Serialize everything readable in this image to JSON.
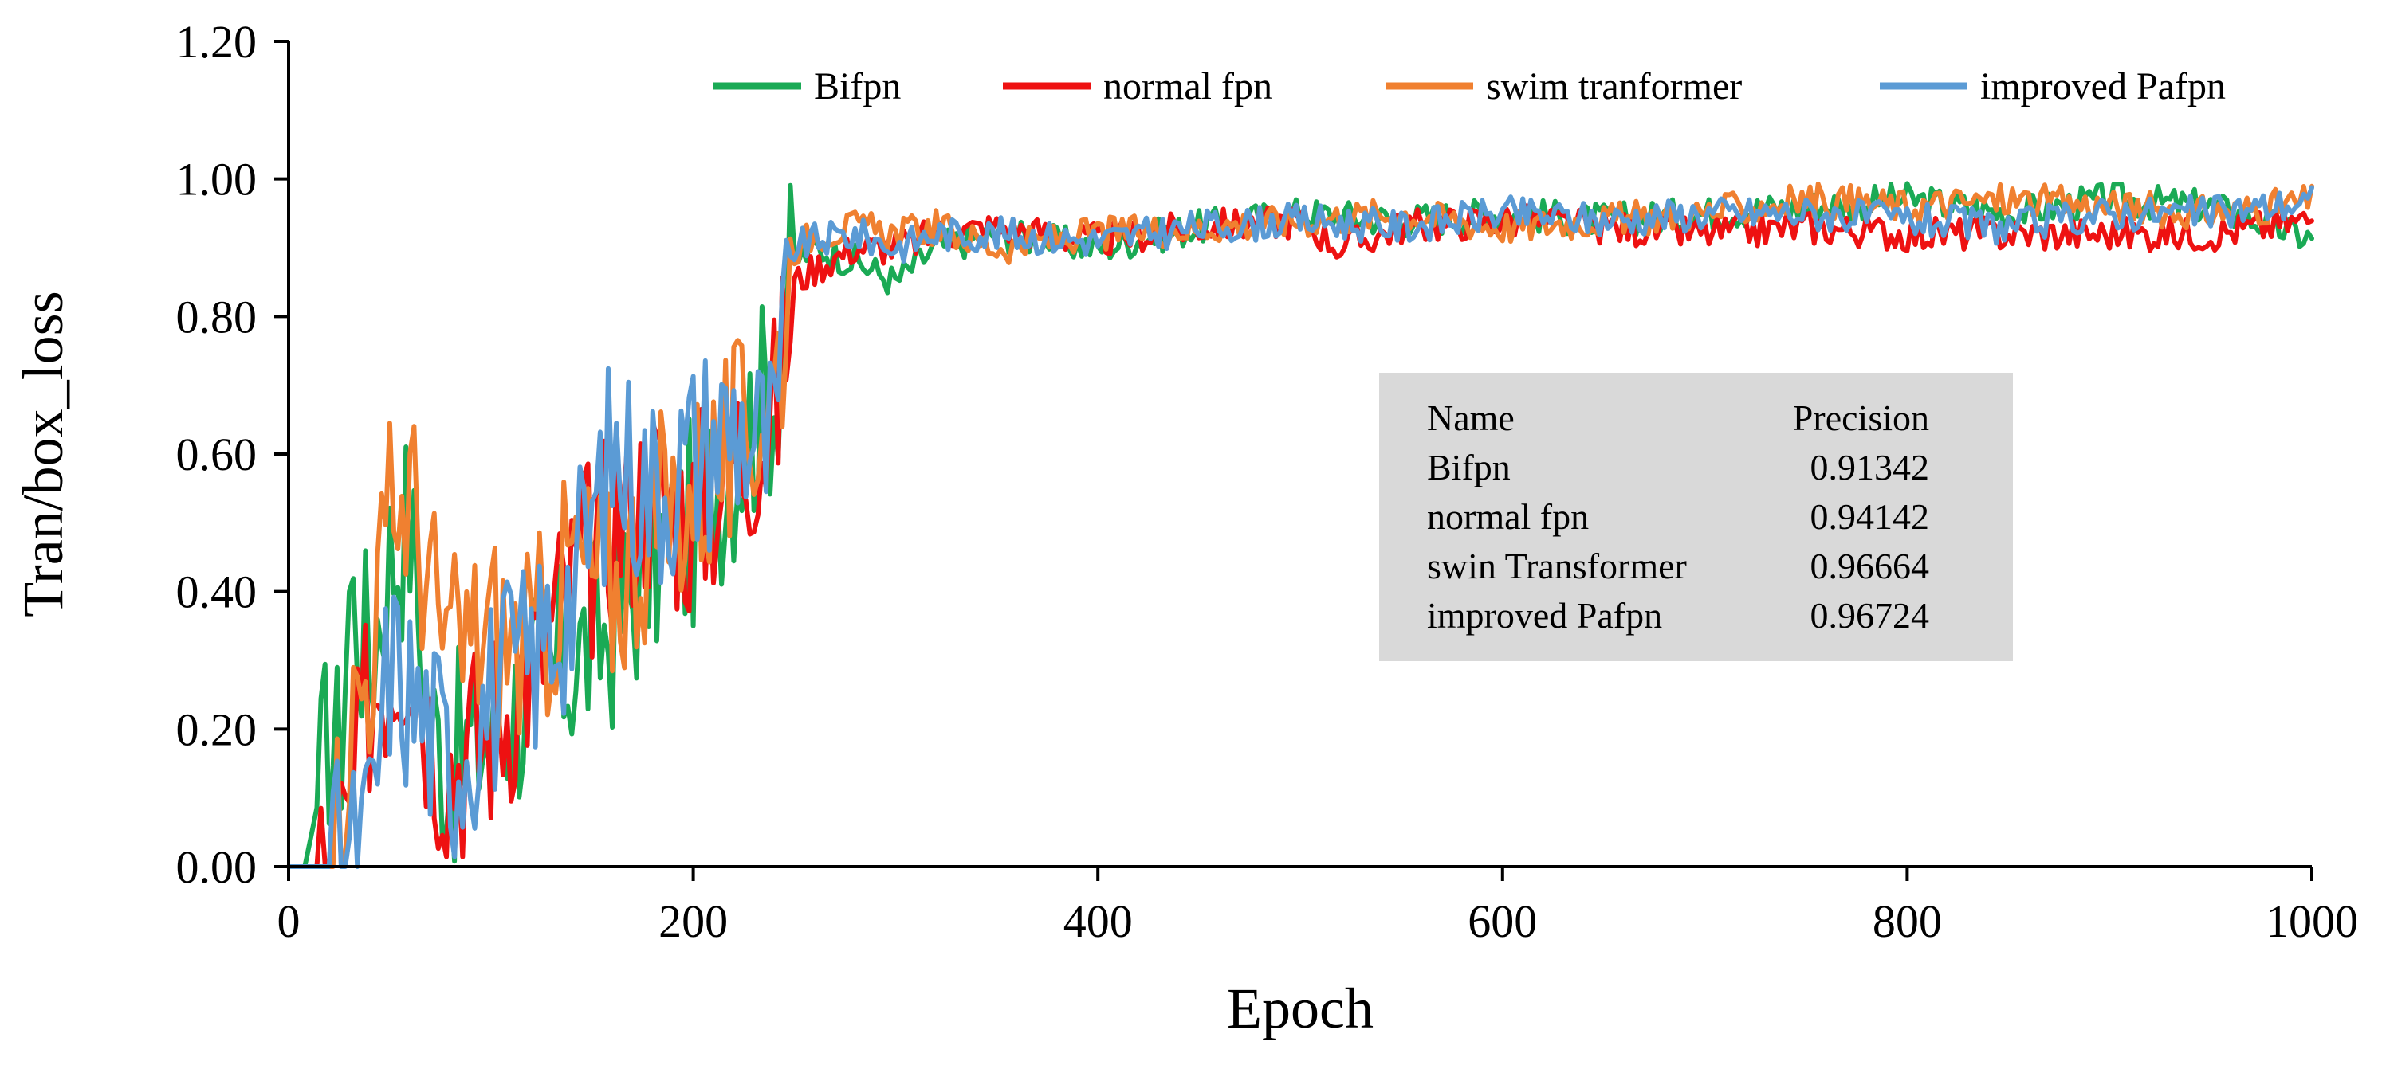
{
  "chart_data": {
    "type": "line",
    "title": "",
    "xlabel": "Epoch",
    "ylabel": "Tran/box_loss",
    "xlim": [
      0,
      1000
    ],
    "ylim": [
      0,
      1.2
    ],
    "x_ticks": [
      0,
      200,
      400,
      600,
      800,
      1000
    ],
    "x_tick_labels": [
      "0",
      "200",
      "400",
      "600",
      "800",
      "1000"
    ],
    "y_ticks": [
      0,
      0.2,
      0.4,
      0.6,
      0.8,
      1.0,
      1.2
    ],
    "y_tick_labels": [
      "0.00",
      "0.20",
      "0.40",
      "0.60",
      "0.80",
      "1.00",
      "1.20"
    ],
    "grid": false,
    "legend_position": "top-right",
    "series": [
      {
        "name": "Bifpn",
        "color": "#1aaa55",
        "x": [
          0,
          8,
          15,
          20,
          25,
          30,
          35,
          40,
          50,
          60,
          70,
          80,
          100,
          120,
          140,
          160,
          180,
          200,
          220,
          240,
          250,
          260,
          280,
          300,
          320,
          350,
          400,
          450,
          500,
          550,
          600,
          650,
          700,
          750,
          800,
          850,
          900,
          950,
          1000
        ],
        "values": [
          0.0,
          0.0,
          0.1,
          0.2,
          0.15,
          0.4,
          0.35,
          0.3,
          0.45,
          0.5,
          0.2,
          0.15,
          0.2,
          0.25,
          0.3,
          0.35,
          0.45,
          0.5,
          0.6,
          0.7,
          0.88,
          0.9,
          0.88,
          0.85,
          0.9,
          0.92,
          0.9,
          0.93,
          0.95,
          0.94,
          0.95,
          0.94,
          0.95,
          0.96,
          0.97,
          0.95,
          0.97,
          0.96,
          0.913
        ]
      },
      {
        "name": "normal fpn",
        "color": "#ee1111",
        "x": [
          0,
          10,
          20,
          30,
          40,
          50,
          60,
          70,
          80,
          100,
          120,
          140,
          160,
          180,
          200,
          220,
          240,
          250,
          260,
          280,
          300,
          320,
          350,
          400,
          450,
          500,
          520,
          550,
          600,
          650,
          700,
          750,
          800,
          850,
          900,
          950,
          1000
        ],
        "values": [
          0.0,
          0.0,
          0.0,
          0.05,
          0.25,
          0.3,
          0.35,
          0.2,
          0.15,
          0.2,
          0.3,
          0.4,
          0.5,
          0.55,
          0.5,
          0.6,
          0.65,
          0.85,
          0.87,
          0.9,
          0.9,
          0.92,
          0.93,
          0.91,
          0.93,
          0.94,
          0.9,
          0.93,
          0.94,
          0.93,
          0.92,
          0.93,
          0.92,
          0.92,
          0.92,
          0.92,
          0.941
        ]
      },
      {
        "name": "swim tranformer",
        "color": "#f08030",
        "x": [
          0,
          10,
          20,
          30,
          40,
          50,
          60,
          70,
          80,
          100,
          120,
          140,
          160,
          180,
          200,
          220,
          240,
          250,
          260,
          280,
          300,
          320,
          350,
          400,
          450,
          500,
          550,
          600,
          650,
          700,
          750,
          800,
          850,
          900,
          950,
          1000
        ],
        "values": [
          0.0,
          0.0,
          0.0,
          0.2,
          0.3,
          0.5,
          0.55,
          0.4,
          0.3,
          0.35,
          0.3,
          0.45,
          0.4,
          0.5,
          0.55,
          0.6,
          0.7,
          0.9,
          0.92,
          0.93,
          0.92,
          0.93,
          0.9,
          0.92,
          0.93,
          0.94,
          0.95,
          0.93,
          0.94,
          0.95,
          0.97,
          0.96,
          0.97,
          0.96,
          0.95,
          0.967
        ]
      },
      {
        "name": "improved Pafpn",
        "color": "#5b9bd5",
        "x": [
          0,
          10,
          20,
          30,
          40,
          50,
          60,
          70,
          80,
          100,
          120,
          140,
          160,
          180,
          200,
          220,
          240,
          250,
          260,
          280,
          300,
          320,
          350,
          400,
          450,
          500,
          550,
          600,
          650,
          700,
          750,
          800,
          850,
          900,
          950,
          1000
        ],
        "values": [
          0.0,
          0.0,
          0.0,
          0.0,
          0.05,
          0.3,
          0.25,
          0.2,
          0.15,
          0.25,
          0.3,
          0.4,
          0.6,
          0.55,
          0.6,
          0.65,
          0.6,
          0.9,
          0.91,
          0.92,
          0.9,
          0.92,
          0.92,
          0.91,
          0.93,
          0.94,
          0.93,
          0.95,
          0.94,
          0.95,
          0.95,
          0.94,
          0.93,
          0.95,
          0.95,
          0.967
        ]
      }
    ],
    "precision_table": {
      "headers": [
        "Name",
        "Precision"
      ],
      "rows": [
        [
          "Bifpn",
          "0.91342"
        ],
        [
          "normal fpn",
          "0.94142"
        ],
        [
          "swin Transformer",
          "0.96664"
        ],
        [
          "improved Pafpn",
          "0.96724"
        ]
      ]
    }
  }
}
